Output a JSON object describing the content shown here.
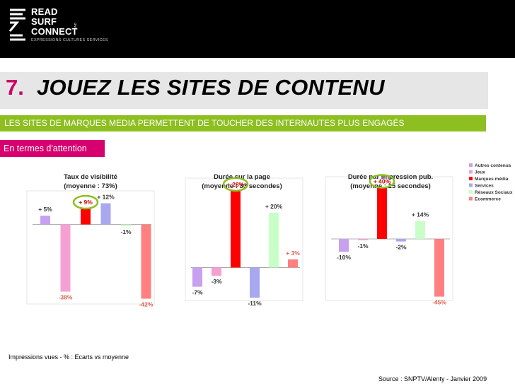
{
  "brand": {
    "line1": "READ",
    "line2": "SURF",
    "line3": "CONNECT",
    "side_text": "AND",
    "tagline": "EXPRESSIONS·CULTURES·SERVICES"
  },
  "title": {
    "number": "7.",
    "text": "JOUEZ LES SITES DE CONTENU"
  },
  "subtitle": "LES SITES DE MARQUES MEDIA PERMETTENT DE TOUCHER DES INTERNAUTES PLUS ENGAGÉS",
  "section_label": "En termes d'attention",
  "footnote": "Impressions vues - % : Ecarts vs moyenne",
  "source": "Source : SNPTV/Alenty - Janvier 2009",
  "colors": {
    "accent": "#cc0066",
    "green_bar": "#8dbf20",
    "highlight_circle": "#8dbf20"
  },
  "chart_data": {
    "type": "bar",
    "legend": {
      "position": "right",
      "items": [
        {
          "name": "Autres contenus",
          "color": "#c8a0f0"
        },
        {
          "name": "Jeux",
          "color": "#f5a0d2"
        },
        {
          "name": "Marques média",
          "color": "#ff0000"
        },
        {
          "name": "Services",
          "color": "#a8a8f0"
        },
        {
          "name": "Réseaux Sociaux",
          "color": "#c8ffc8"
        },
        {
          "name": "Ecommerce",
          "color": "#ff8080"
        }
      ]
    },
    "charts": [
      {
        "title_line1": "Taux de visibilité",
        "title_line2": "(moyenne : 73%)",
        "categories": [
          "Autres contenus",
          "Jeux",
          "Marques média",
          "Services",
          "Réseaux Sociaux",
          "Ecommerce"
        ],
        "values": [
          5,
          -38,
          9,
          12,
          -1,
          -42
        ],
        "labels": [
          "+ 5%",
          "-38%",
          "+ 9%",
          "+ 12%",
          "-1%",
          "-42%"
        ],
        "highlight_index": 2,
        "ylim": [
          -45,
          15
        ]
      },
      {
        "title_line1": "Durée sur la page",
        "title_line2": "(moyenne : 33 secondes)",
        "categories": [
          "Autres contenus",
          "Jeux",
          "Marques média",
          "Services",
          "Réseaux Sociaux",
          "Ecommerce"
        ],
        "values": [
          -7,
          -3,
          28,
          -11,
          20,
          3
        ],
        "labels": [
          "-7%",
          "-3%",
          "+ 28%",
          "-11%",
          "+ 20%",
          "+ 3%"
        ],
        "highlight_index": 2,
        "ylim": [
          -12,
          30
        ]
      },
      {
        "title_line1": "Durée par impression pub.",
        "title_line2": "(moyenne : 15 secondes)",
        "categories": [
          "Autres contenus",
          "Jeux",
          "Marques média",
          "Services",
          "Réseaux Sociaux",
          "Ecommerce"
        ],
        "values": [
          -10,
          -1,
          40,
          -2,
          14,
          -45
        ],
        "labels": [
          "-10%",
          "-1%",
          "+ 40%",
          "-2%",
          "+ 14%",
          "-45%"
        ],
        "highlight_index": 2,
        "ylim": [
          -48,
          43
        ]
      }
    ]
  }
}
